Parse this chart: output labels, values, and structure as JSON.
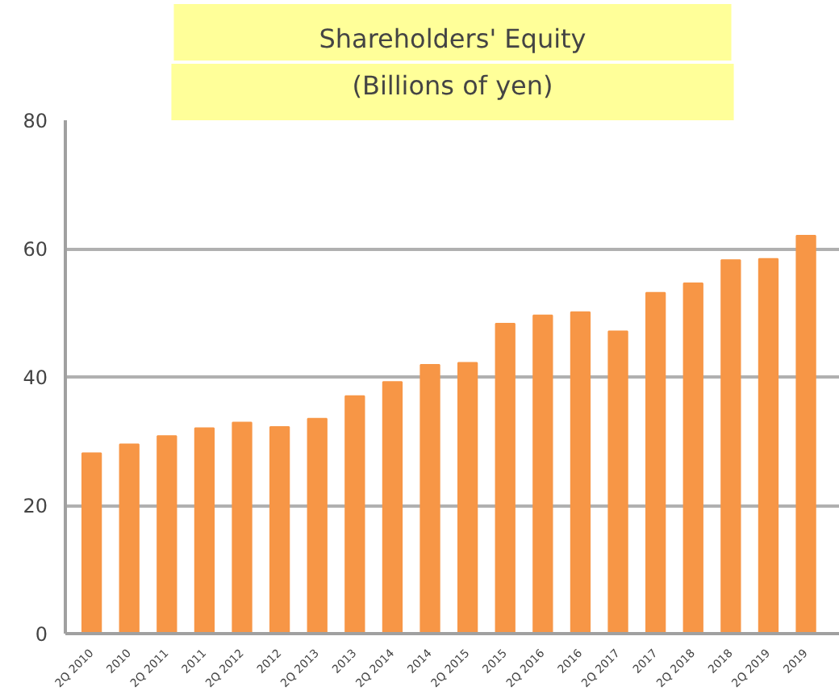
{
  "chart_data": {
    "type": "bar",
    "title": "Shareholders' Equity",
    "subtitle": "(Billions of yen)",
    "categories": [
      "2Q 2010",
      "2010",
      "2Q 2011",
      "2011",
      "2Q 2012",
      "2012",
      "2Q 2013",
      "2013",
      "2Q 2014",
      "2014",
      "2Q 2015",
      "2015",
      "2Q 2016",
      "2016",
      "2Q 2017",
      "2017",
      "2Q 2018",
      "2018",
      "2Q 2019",
      "2019"
    ],
    "values": [
      28.1,
      29.5,
      30.8,
      32.0,
      32.9,
      32.2,
      33.5,
      37.0,
      39.2,
      41.9,
      42.2,
      48.3,
      49.6,
      50.1,
      47.1,
      53.1,
      54.6,
      58.2,
      58.4,
      62.0
    ],
    "color": "#f79646",
    "ylim": [
      0,
      80
    ],
    "yticks": [
      0,
      20,
      40,
      60,
      80
    ],
    "grid": "y"
  }
}
